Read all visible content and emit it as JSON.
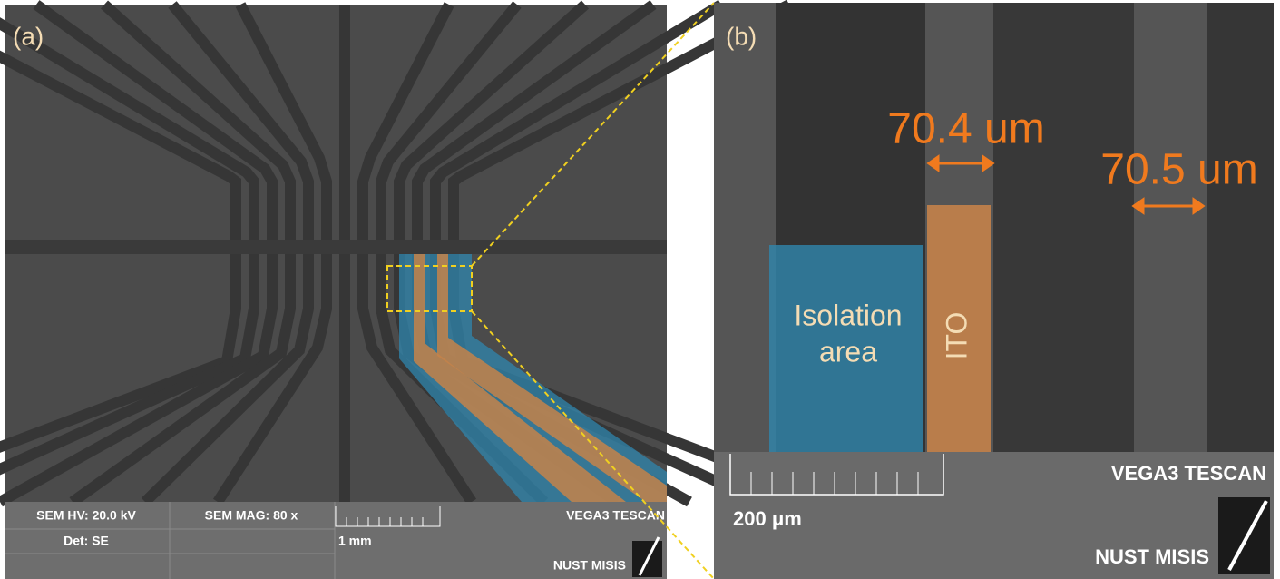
{
  "panels": [
    {
      "label": "(a)",
      "info": {
        "hv": "SEM HV: 20.0 kV",
        "mag": "SEM MAG: 80 x",
        "det": "Det: SE",
        "scale": "1 mm",
        "brand": "VEGA3 TESCAN",
        "lab": "NUST MISIS"
      }
    },
    {
      "label": "(b)",
      "annotations": {
        "width_left": "70.4 um",
        "width_right": "70.5 um",
        "isolation": [
          "Isolation",
          "area"
        ],
        "ito": "ITO"
      },
      "info": {
        "scale": "200 μm",
        "brand": "VEGA3 TESCAN",
        "lab": "NUST MISIS"
      }
    }
  ]
}
